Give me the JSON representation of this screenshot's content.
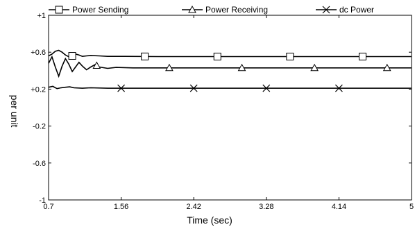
{
  "chart_data": {
    "type": "line",
    "title": "",
    "xlabel": "Time (sec)",
    "ylabel": "per unit",
    "xlim": [
      0.7,
      5
    ],
    "ylim": [
      -1,
      1
    ],
    "x_ticks": [
      0.7,
      1.56,
      2.42,
      3.28,
      4.14,
      5
    ],
    "x_tick_labels": [
      "0.7",
      "1.56",
      "2.42",
      "3.28",
      "4.14",
      "5"
    ],
    "y_ticks": [
      -1,
      -0.6,
      -0.2,
      0.2,
      0.6,
      1
    ],
    "y_tick_labels": [
      "-1",
      "-0.6",
      "-0.2",
      "+0.2",
      "+0.6",
      "+1"
    ],
    "grid": false,
    "legend_position": "top",
    "series": [
      {
        "name": "Power Sending",
        "marker": "square",
        "color": "#000000",
        "x": [
          0.7,
          0.74,
          0.78,
          0.82,
          0.86,
          0.9,
          0.94,
          0.98,
          1.02,
          1.06,
          1.1,
          1.15,
          1.2,
          1.3,
          1.4,
          1.6,
          2.0,
          2.5,
          3.0,
          3.5,
          4.0,
          4.5,
          5.0
        ],
        "y": [
          0.56,
          0.58,
          0.61,
          0.62,
          0.6,
          0.57,
          0.55,
          0.56,
          0.58,
          0.57,
          0.555,
          0.56,
          0.565,
          0.56,
          0.555,
          0.555,
          0.553,
          0.553,
          0.553,
          0.553,
          0.553,
          0.553,
          0.553
        ],
        "marker_x": [
          0.98,
          1.84,
          2.7,
          3.56,
          4.42
        ]
      },
      {
        "name": "Power Receiving",
        "marker": "triangle",
        "color": "#000000",
        "x": [
          0.7,
          0.74,
          0.78,
          0.82,
          0.86,
          0.9,
          0.94,
          0.98,
          1.02,
          1.06,
          1.1,
          1.15,
          1.2,
          1.25,
          1.3,
          1.4,
          1.5,
          1.7,
          2.0,
          2.5,
          3.0,
          3.5,
          4.0,
          4.5,
          5.0
        ],
        "y": [
          0.48,
          0.55,
          0.44,
          0.34,
          0.45,
          0.53,
          0.47,
          0.39,
          0.44,
          0.49,
          0.45,
          0.41,
          0.44,
          0.465,
          0.44,
          0.425,
          0.435,
          0.43,
          0.43,
          0.43,
          0.43,
          0.43,
          0.43,
          0.43,
          0.43
        ],
        "marker_x": [
          1.27,
          2.13,
          2.99,
          3.85,
          4.71
        ]
      },
      {
        "name": "dc Power",
        "marker": "x",
        "color": "#000000",
        "x": [
          0.7,
          0.75,
          0.8,
          0.85,
          0.9,
          0.95,
          1.0,
          1.1,
          1.2,
          1.4,
          1.6,
          2.0,
          2.5,
          3.0,
          3.5,
          4.0,
          4.5,
          5.0
        ],
        "y": [
          0.22,
          0.23,
          0.205,
          0.215,
          0.22,
          0.225,
          0.215,
          0.21,
          0.215,
          0.21,
          0.21,
          0.21,
          0.21,
          0.21,
          0.21,
          0.21,
          0.21,
          0.21
        ],
        "marker_x": [
          1.56,
          2.42,
          3.28,
          4.14
        ]
      }
    ]
  }
}
